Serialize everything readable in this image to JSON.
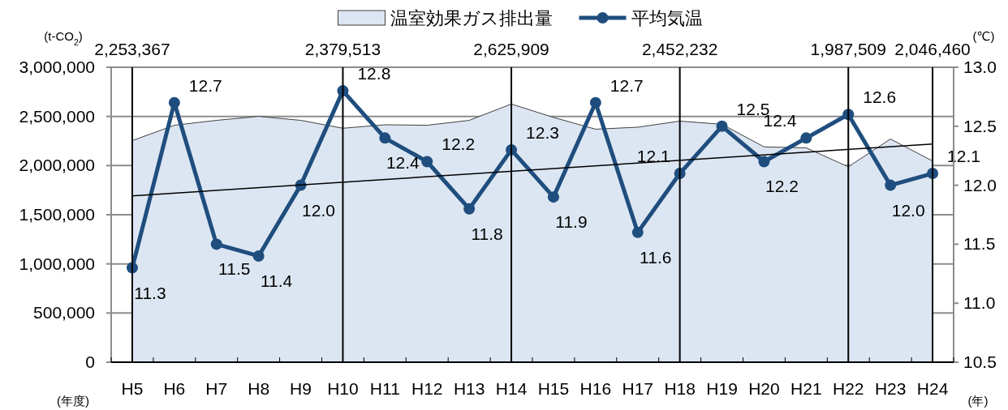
{
  "chart_data": {
    "type": "area",
    "ylabel": "(t-CO$_{2}$)",
    "y2label": "(℃)",
    "xlabel": "(年度)",
    "categories": [
      "H5",
      "H6",
      "H7",
      "H8",
      "H9",
      "H10",
      "H11",
      "H12",
      "H13",
      "H14",
      "H15",
      "H16",
      "H17",
      "H18",
      "H19",
      "H20",
      "H21",
      "H22",
      "H23",
      "H24"
    ],
    "series": [
      {
        "name": "温室効果ガス排出量",
        "color": "#dce6f2",
        "values": [
          2253367,
          2410000,
          2460000,
          2500000,
          2460000,
          2379513,
          2415000,
          2410000,
          2460000,
          2625909,
          2490000,
          2370000,
          2390000,
          2452232,
          2420000,
          2190000,
          2180000,
          1987509,
          2270000,
          2046460
        ]
      },
      {
        "name": "平均気温",
        "type": "line",
        "axis": "y2",
        "color": "#1f4e7e",
        "marker": "circle",
        "values": [
          11.3,
          12.7,
          11.5,
          11.4,
          12.0,
          12.8,
          12.4,
          12.2,
          11.8,
          12.3,
          11.9,
          12.7,
          11.6,
          12.1,
          12.5,
          12.2,
          12.4,
          12.6,
          12.0,
          12.1
        ],
        "value_labels": [
          "11.3",
          "12.7",
          "11.5",
          "11.4",
          "12.0",
          "12.8",
          "12.4",
          "12.2",
          "11.8",
          "12.3",
          "11.9",
          "12.7",
          "11.6",
          "12.1",
          "12.5",
          "12.2",
          "12.4",
          "12.6",
          "12.0",
          "12.1"
        ]
      },
      {
        "type": "line",
        "axis": "y2",
        "color": "#000000",
        "x": [
          "H5",
          "H24"
        ],
        "values": [
          11.91,
          12.35
        ]
      }
    ],
    "ref_lines": [
      {
        "axis": "x",
        "value": "H5",
        "label": "2,253,367",
        "color": "#000000"
      },
      {
        "axis": "x",
        "value": "H10",
        "label": "2,379,513",
        "color": "#000000"
      },
      {
        "axis": "x",
        "value": "H14",
        "label": "2,625,909",
        "color": "#000000"
      },
      {
        "axis": "x",
        "value": "H18",
        "label": "2,452,232",
        "color": "#000000"
      },
      {
        "axis": "x",
        "value": "H22",
        "label": "1,987,509",
        "color": "#000000"
      },
      {
        "axis": "x",
        "value": "H24",
        "label": "2,046,460",
        "color": "#000000"
      }
    ],
    "ylim": [
      0,
      3000000
    ],
    "yticks": [
      {
        "value": 0,
        "label": "0"
      },
      {
        "value": 500000,
        "label": "500,000"
      },
      {
        "value": 1000000,
        "label": "1,000,000"
      },
      {
        "value": 1500000,
        "label": "1,500,000"
      },
      {
        "value": 2000000,
        "label": "2,000,000"
      },
      {
        "value": 2500000,
        "label": "2,500,000"
      },
      {
        "value": 3000000,
        "label": "3,000,000"
      }
    ],
    "y2lim": [
      10.5,
      13.0
    ],
    "y2ticks": [
      10.5,
      {
        "value": 11,
        "label": "11.0"
      },
      11.5,
      {
        "value": 12,
        "label": "12.0"
      },
      12.5,
      {
        "value": 13,
        "label": "13.0"
      }
    ],
    "grid": "y",
    "legend": "top",
    "annotations": [
      "(年)"
    ]
  }
}
